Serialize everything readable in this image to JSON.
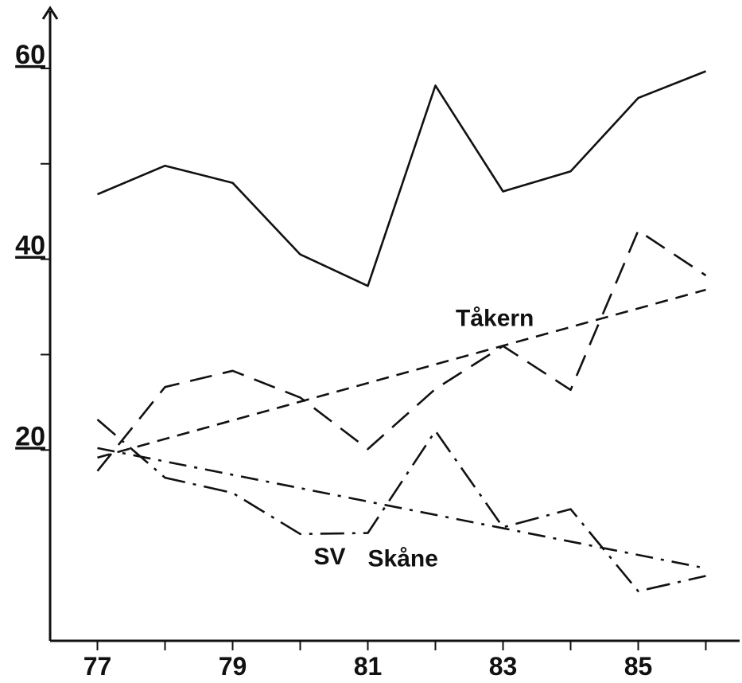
{
  "chart_data": {
    "type": "line",
    "title": "",
    "xlabel": "",
    "ylabel": "",
    "x": [
      77,
      78,
      79,
      80,
      81,
      82,
      83,
      84,
      85,
      86
    ],
    "x_tick_values": [
      77,
      78,
      79,
      80,
      81,
      82,
      83,
      84,
      85,
      86
    ],
    "x_tick_labels": [
      "77",
      "",
      "79",
      "",
      "81",
      "",
      "83",
      "",
      "85",
      ""
    ],
    "y_tick_values": [
      20,
      30,
      40,
      50,
      60
    ],
    "y_tick_labels": [
      "20",
      "",
      "40",
      "",
      "60"
    ],
    "xlim": [
      76.3,
      86.5
    ],
    "ylim": [
      0,
      66
    ],
    "grid": false,
    "series": [
      {
        "style": "solid",
        "dash": "",
        "x": [
          77,
          78,
          79,
          80,
          81,
          82,
          83,
          84,
          85,
          86
        ],
        "values": [
          46.8,
          49.8,
          48.0,
          40.5,
          37.2,
          58.2,
          47.1,
          49.2,
          56.9,
          59.7
        ]
      },
      {
        "style": "dashed",
        "dash": "28 14",
        "x": [
          77,
          78,
          79,
          80,
          81,
          82,
          83,
          84,
          85,
          86
        ],
        "values": [
          17.8,
          26.6,
          28.3,
          25.5,
          20.1,
          26.4,
          30.9,
          26.3,
          43.0,
          38.3
        ]
      },
      {
        "style": "short-dashed trend",
        "dash": "16 10",
        "x": [
          77,
          86
        ],
        "values": [
          19.2,
          36.8
        ]
      },
      {
        "style": "long dash-dot",
        "dash": "30 10 4 10",
        "x": [
          77,
          78,
          79,
          80,
          81,
          82,
          83,
          84,
          85,
          86
        ],
        "values": [
          23.2,
          17.1,
          15.5,
          11.2,
          11.3,
          22.0,
          11.9,
          13.8,
          5.2,
          6.8
        ]
      },
      {
        "style": "dash-dot trend",
        "dash": "22 10 4 10",
        "x": [
          77,
          86
        ],
        "values": [
          20.2,
          7.6
        ]
      }
    ],
    "annotations": [
      {
        "text": "Tåkern",
        "x": 82.3,
        "y": 33.0
      },
      {
        "text": "SV",
        "x": 80.2,
        "y": 8.0
      },
      {
        "text": "Skåne",
        "x": 81.0,
        "y": 7.8
      }
    ]
  }
}
